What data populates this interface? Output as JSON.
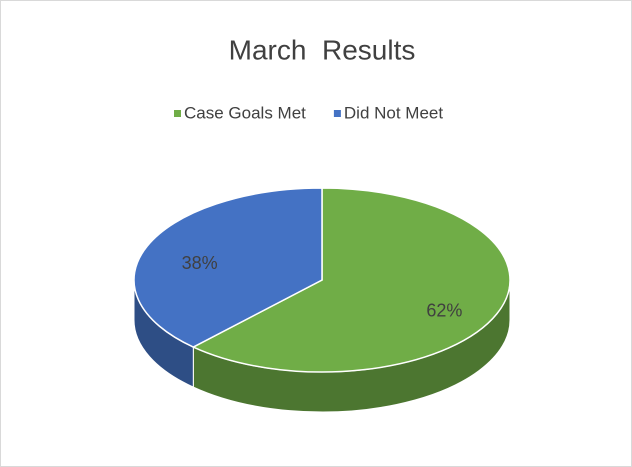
{
  "chart_data": {
    "type": "pie",
    "title": "March  Results",
    "categories": [
      "Case Goals Met",
      "Did Not Meet"
    ],
    "values": [
      62,
      38
    ],
    "value_labels": [
      "62%",
      "38%"
    ],
    "colors": [
      "#70ad47",
      "#4472c4"
    ],
    "legend": "top"
  }
}
